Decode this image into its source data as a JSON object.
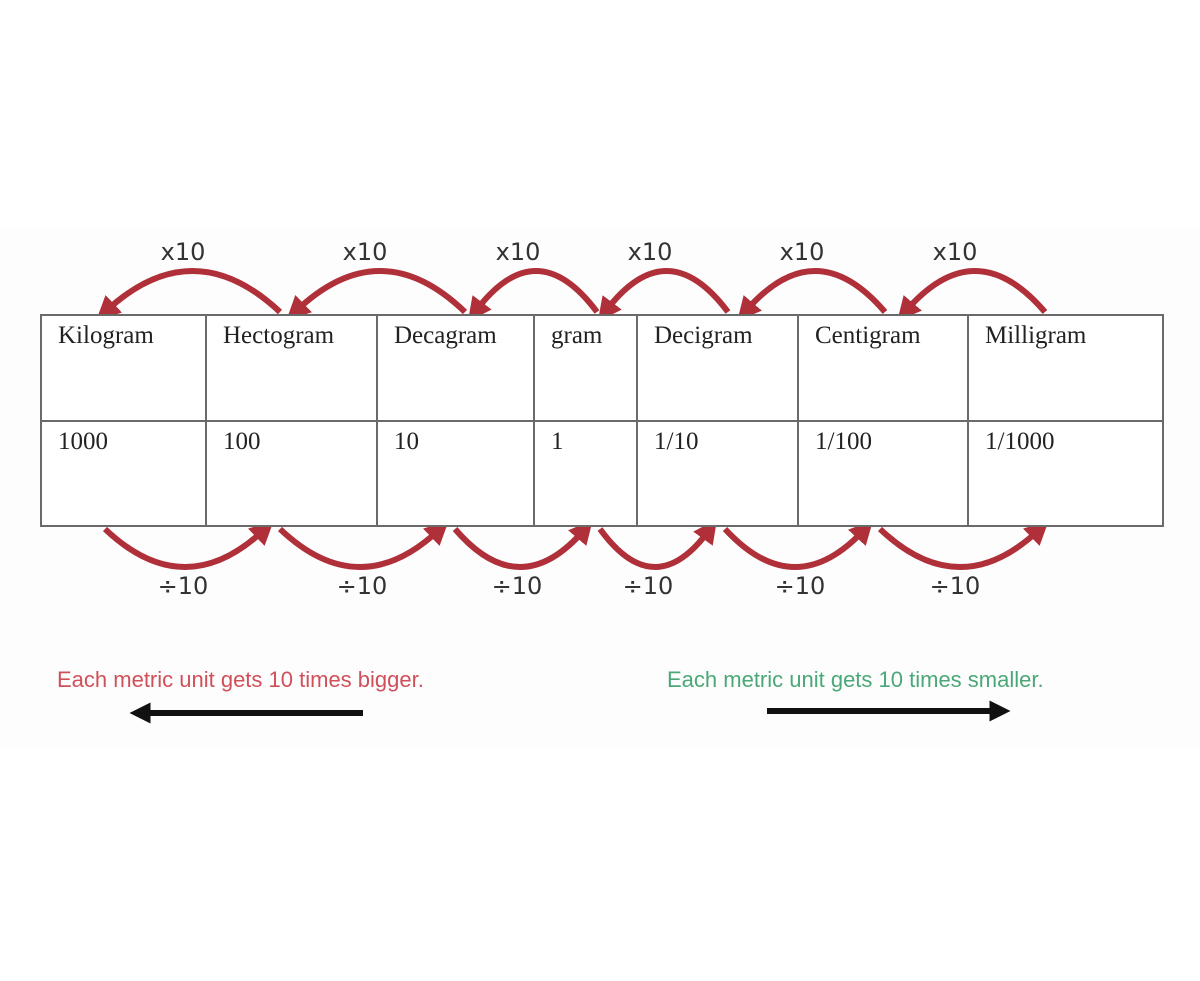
{
  "units": [
    {
      "name": "Kilogram",
      "value": "1000"
    },
    {
      "name": "Hectogram",
      "value": "100"
    },
    {
      "name": "Decagram",
      "value": "10"
    },
    {
      "name": "gram",
      "value": "1"
    },
    {
      "name": "Decigram",
      "value": "1/10"
    },
    {
      "name": "Centigram",
      "value": "1/100"
    },
    {
      "name": "Milligram",
      "value": "1/1000"
    }
  ],
  "multiply_labels": [
    "x10",
    "x10",
    "x10",
    "x10",
    "x10",
    "x10"
  ],
  "divide_labels": [
    "÷10",
    "÷10",
    "÷10",
    "÷10",
    "÷10",
    "÷10"
  ],
  "notes": {
    "bigger": "Each metric unit gets 10 times bigger.",
    "smaller": "Each metric unit gets 10 times smaller."
  },
  "colors": {
    "arc": "#b0303a",
    "bigger_text": "#d0505a",
    "smaller_text": "#4aa878",
    "arrow": "#111111"
  }
}
